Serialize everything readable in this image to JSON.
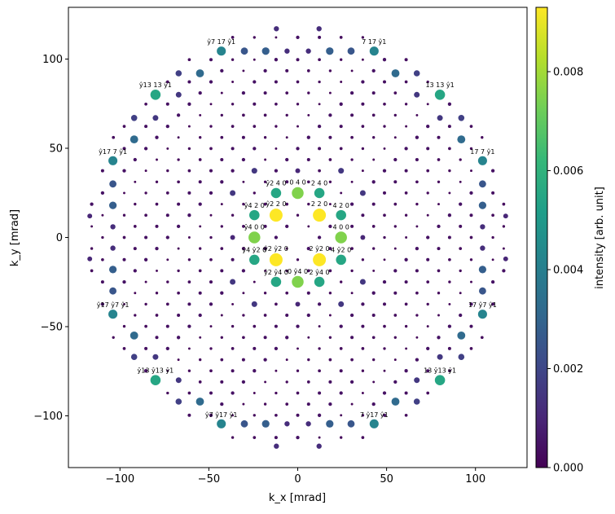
{
  "chart_data": {
    "type": "scatter",
    "title": "",
    "xlabel": "k_x [mrad]",
    "ylabel": "k_y [mrad]",
    "xlim": [
      -129,
      129
    ],
    "ylim": [
      -129,
      129
    ],
    "xticks": [
      -100,
      -50,
      0,
      50,
      100
    ],
    "yticks": [
      -100,
      -50,
      0,
      50,
      100
    ],
    "xtick_labels": [
      "−100",
      "−50",
      "0",
      "50",
      "100"
    ],
    "ytick_labels": [
      "−100",
      "−50",
      "0",
      "50",
      "100"
    ],
    "grid": false,
    "colorbar": {
      "label": "intensity [arb. unit]",
      "colormap": "viridis",
      "range": [
        0.0,
        0.0093
      ],
      "ticks": [
        0.0,
        0.002,
        0.004,
        0.006,
        0.008
      ],
      "tick_labels": [
        "0.000",
        "0.002",
        "0.004",
        "0.006",
        "0.008"
      ]
    },
    "colormap_stops": [
      "#440154",
      "#482878",
      "#3e4989",
      "#31688e",
      "#26828e",
      "#1f9e89",
      "#35b779",
      "#6ece58",
      "#b5de2b",
      "#fde725"
    ],
    "lattice": {
      "a_mrad": 6.1,
      "b_mrad": 6.23,
      "k_max_mrad": 118,
      "background_intensity": 0.00015
    },
    "spots": [
      {
        "x": -12.2,
        "y": 12.5,
        "intensity": 0.0093,
        "label": "ŷ2 2 0"
      },
      {
        "x": 12.2,
        "y": 12.5,
        "intensity": 0.0093,
        "label": "2 2 0"
      },
      {
        "x": -12.2,
        "y": -12.5,
        "intensity": 0.0093,
        "label": "ŷ2 ŷ2 0"
      },
      {
        "x": 12.2,
        "y": -12.5,
        "intensity": 0.0093,
        "label": "2 ŷ2 0"
      },
      {
        "x": -24.4,
        "y": 0,
        "intensity": 0.0075,
        "label": "ŷ4 0 0"
      },
      {
        "x": 24.4,
        "y": 0,
        "intensity": 0.0075,
        "label": "4 0 0"
      },
      {
        "x": 0,
        "y": 24.9,
        "intensity": 0.0075,
        "label": "0 4 0"
      },
      {
        "x": 0,
        "y": -24.9,
        "intensity": 0.0075,
        "label": "0 ŷ4 0"
      },
      {
        "x": -12.2,
        "y": 24.9,
        "intensity": 0.0055,
        "label": "ŷ2 4 0"
      },
      {
        "x": 12.2,
        "y": 24.9,
        "intensity": 0.0055,
        "label": "2 4 0"
      },
      {
        "x": -12.2,
        "y": -24.9,
        "intensity": 0.0055,
        "label": "ŷ2 ŷ4 0"
      },
      {
        "x": 12.2,
        "y": -24.9,
        "intensity": 0.0055,
        "label": "2 ŷ4 0"
      },
      {
        "x": -24.4,
        "y": 12.5,
        "intensity": 0.0055,
        "label": "ŷ4 2 0"
      },
      {
        "x": 24.4,
        "y": 12.5,
        "intensity": 0.0055,
        "label": "4 2 0"
      },
      {
        "x": -24.4,
        "y": -12.5,
        "intensity": 0.0055,
        "label": "ŷ4 ŷ2 0"
      },
      {
        "x": 24.4,
        "y": -12.5,
        "intensity": 0.0055,
        "label": "4 ŷ2 0"
      },
      {
        "x": -43,
        "y": 104.5,
        "intensity": 0.0042,
        "label": "ŷ7 17 ŷ1"
      },
      {
        "x": 43,
        "y": 104.5,
        "intensity": 0.0042,
        "label": "7 17 ŷ1"
      },
      {
        "x": -43,
        "y": -104.5,
        "intensity": 0.0042,
        "label": "ŷ7 ŷ17 ŷ1"
      },
      {
        "x": 43,
        "y": -104.5,
        "intensity": 0.0042,
        "label": "7 ŷ17 ŷ1"
      },
      {
        "x": -80,
        "y": 80,
        "intensity": 0.0055,
        "label": "ŷ13 13 ŷ1"
      },
      {
        "x": 80,
        "y": 80,
        "intensity": 0.0055,
        "label": "13 13 ŷ1"
      },
      {
        "x": -80,
        "y": -80,
        "intensity": 0.0055,
        "label": "ŷ13 ŷ13 ŷ1"
      },
      {
        "x": 80,
        "y": -80,
        "intensity": 0.0055,
        "label": "13 ŷ13 ŷ1"
      },
      {
        "x": -104,
        "y": 43,
        "intensity": 0.0042,
        "label": "ŷ17 7 ŷ1"
      },
      {
        "x": 104,
        "y": 43,
        "intensity": 0.0042,
        "label": "17 7 ŷ1"
      },
      {
        "x": -104,
        "y": -43,
        "intensity": 0.0042,
        "label": "ŷ17 ŷ7 ŷ1"
      },
      {
        "x": 104,
        "y": -43,
        "intensity": 0.0042,
        "label": "17 ŷ7 ŷ1"
      },
      {
        "x": -55,
        "y": 92,
        "intensity": 0.0032
      },
      {
        "x": 55,
        "y": 92,
        "intensity": 0.0032
      },
      {
        "x": -55,
        "y": -92,
        "intensity": 0.0032
      },
      {
        "x": 55,
        "y": -92,
        "intensity": 0.0032
      },
      {
        "x": -92,
        "y": 55,
        "intensity": 0.0032
      },
      {
        "x": 92,
        "y": 55,
        "intensity": 0.0032
      },
      {
        "x": -92,
        "y": -55,
        "intensity": 0.0032
      },
      {
        "x": 92,
        "y": -55,
        "intensity": 0.0032
      },
      {
        "x": -104,
        "y": 30,
        "intensity": 0.0025
      },
      {
        "x": 104,
        "y": 30,
        "intensity": 0.0025
      },
      {
        "x": -104,
        "y": 18,
        "intensity": 0.0028
      },
      {
        "x": 104,
        "y": 18,
        "intensity": 0.0028
      },
      {
        "x": -104,
        "y": -18,
        "intensity": 0.0028
      },
      {
        "x": 104,
        "y": -18,
        "intensity": 0.0028
      },
      {
        "x": -104,
        "y": -30,
        "intensity": 0.0025
      },
      {
        "x": 104,
        "y": -30,
        "intensity": 0.0025
      },
      {
        "x": -18,
        "y": 104.5,
        "intensity": 0.0028
      },
      {
        "x": 18,
        "y": 104.5,
        "intensity": 0.0028
      },
      {
        "x": -18,
        "y": -104.5,
        "intensity": 0.0028
      },
      {
        "x": 18,
        "y": -104.5,
        "intensity": 0.0028
      },
      {
        "x": -30,
        "y": 104.5,
        "intensity": 0.0025
      },
      {
        "x": 30,
        "y": 104.5,
        "intensity": 0.0025
      },
      {
        "x": -30,
        "y": -104.5,
        "intensity": 0.0025
      },
      {
        "x": 30,
        "y": -104.5,
        "intensity": 0.0025
      },
      {
        "x": -6,
        "y": 104.5,
        "intensity": 0.0012
      },
      {
        "x": 6,
        "y": 104.5,
        "intensity": 0.0012
      },
      {
        "x": -6,
        "y": -104.5,
        "intensity": 0.0012
      },
      {
        "x": 6,
        "y": -104.5,
        "intensity": 0.0012
      },
      {
        "x": -104,
        "y": 6,
        "intensity": 0.0012
      },
      {
        "x": 104,
        "y": 6,
        "intensity": 0.0012
      },
      {
        "x": -104,
        "y": -6,
        "intensity": 0.0012
      },
      {
        "x": 104,
        "y": -6,
        "intensity": 0.0012
      },
      {
        "x": -67,
        "y": 92,
        "intensity": 0.0018
      },
      {
        "x": 67,
        "y": 92,
        "intensity": 0.0018
      },
      {
        "x": -67,
        "y": -92,
        "intensity": 0.0018
      },
      {
        "x": 67,
        "y": -92,
        "intensity": 0.0018
      },
      {
        "x": -92,
        "y": 67,
        "intensity": 0.0018
      },
      {
        "x": 92,
        "y": 67,
        "intensity": 0.0018
      },
      {
        "x": -92,
        "y": -67,
        "intensity": 0.0018
      },
      {
        "x": 92,
        "y": -67,
        "intensity": 0.0018
      },
      {
        "x": -80,
        "y": 67,
        "intensity": 0.0015
      },
      {
        "x": 80,
        "y": 67,
        "intensity": 0.0015
      },
      {
        "x": -80,
        "y": -67,
        "intensity": 0.0015
      },
      {
        "x": 80,
        "y": -67,
        "intensity": 0.0015
      },
      {
        "x": -67,
        "y": 80,
        "intensity": 0.0015
      },
      {
        "x": 67,
        "y": 80,
        "intensity": 0.0015
      },
      {
        "x": -67,
        "y": -80,
        "intensity": 0.0015
      },
      {
        "x": 67,
        "y": -80,
        "intensity": 0.0015
      },
      {
        "x": -12,
        "y": 117,
        "intensity": 0.0012
      },
      {
        "x": 12,
        "y": 117,
        "intensity": 0.0012
      },
      {
        "x": -12,
        "y": -117,
        "intensity": 0.0012
      },
      {
        "x": 12,
        "y": -117,
        "intensity": 0.0012
      },
      {
        "x": -117,
        "y": 12,
        "intensity": 0.001
      },
      {
        "x": 117,
        "y": 12,
        "intensity": 0.001
      },
      {
        "x": -117,
        "y": -12,
        "intensity": 0.001
      },
      {
        "x": 117,
        "y": -12,
        "intensity": 0.001
      },
      {
        "x": -36.6,
        "y": 24.9,
        "intensity": 0.0015
      },
      {
        "x": 36.6,
        "y": 24.9,
        "intensity": 0.0015
      },
      {
        "x": -36.6,
        "y": -24.9,
        "intensity": 0.0015
      },
      {
        "x": 36.6,
        "y": -24.9,
        "intensity": 0.0015
      },
      {
        "x": -24.4,
        "y": 37.4,
        "intensity": 0.0015
      },
      {
        "x": 24.4,
        "y": 37.4,
        "intensity": 0.0015
      },
      {
        "x": -24.4,
        "y": -37.4,
        "intensity": 0.0015
      },
      {
        "x": 24.4,
        "y": -37.4,
        "intensity": 0.0015
      },
      {
        "x": -36.6,
        "y": 0,
        "intensity": 0.001
      },
      {
        "x": 36.6,
        "y": 0,
        "intensity": 0.001
      },
      {
        "x": 0,
        "y": 37.4,
        "intensity": 0.001
      },
      {
        "x": 0,
        "y": -37.4,
        "intensity": 0.001
      }
    ]
  }
}
